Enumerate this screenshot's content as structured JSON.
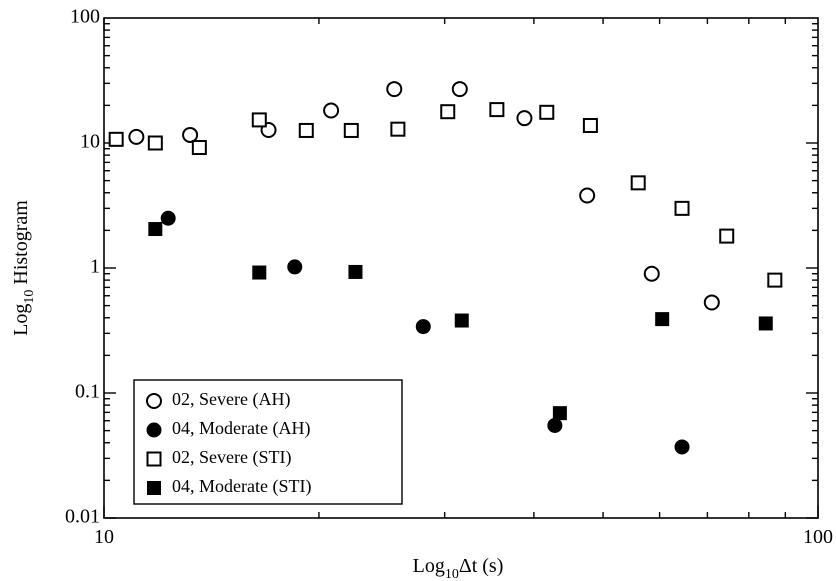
{
  "chart_data": {
    "type": "scatter",
    "title": "",
    "xlabel": {
      "prefix": "Log",
      "sub": "10",
      "rest": "Δt (s)"
    },
    "ylabel": {
      "prefix": "Log",
      "sub": "10",
      "rest": " Histogram"
    },
    "x_scale": "log",
    "y_scale": "log",
    "xlim": [
      10,
      100
    ],
    "ylim": [
      0.01,
      100
    ],
    "x_major_ticks": [
      10,
      100
    ],
    "x_tick_labels": [
      "10",
      "100"
    ],
    "y_major_ticks": [
      0.01,
      0.1,
      1,
      10,
      100
    ],
    "y_tick_labels": [
      "0.01",
      "0.1",
      "1",
      "10",
      "100"
    ],
    "grid": false,
    "legend_position": "bottom-left",
    "series": [
      {
        "name": "02, Severe (AH)",
        "marker": "open-circle",
        "points": [
          [
            11.1,
            11.2
          ],
          [
            13.2,
            11.6
          ],
          [
            17.0,
            12.7
          ],
          [
            20.8,
            18.2
          ],
          [
            25.5,
            27.0
          ],
          [
            31.5,
            27.0
          ],
          [
            38.8,
            15.8
          ],
          [
            47.5,
            3.8
          ],
          [
            58.5,
            0.9
          ],
          [
            71.0,
            0.53
          ]
        ]
      },
      {
        "name": "04, Moderate (AH)",
        "marker": "filled-circle",
        "points": [
          [
            12.3,
            2.5
          ],
          [
            18.5,
            1.02
          ],
          [
            28.0,
            0.34
          ],
          [
            42.8,
            0.055
          ],
          [
            64.5,
            0.037
          ]
        ]
      },
      {
        "name": "02, Severe (STI)",
        "marker": "open-square",
        "points": [
          [
            10.4,
            10.7
          ],
          [
            11.8,
            10.0
          ],
          [
            13.6,
            9.2
          ],
          [
            16.5,
            15.3
          ],
          [
            19.2,
            12.6
          ],
          [
            22.2,
            12.6
          ],
          [
            25.8,
            12.9
          ],
          [
            30.3,
            17.8
          ],
          [
            35.5,
            18.5
          ],
          [
            41.7,
            17.6
          ],
          [
            48.0,
            13.8
          ],
          [
            56.0,
            4.8
          ],
          [
            64.5,
            3.0
          ],
          [
            74.5,
            1.8
          ],
          [
            87.0,
            0.8
          ]
        ]
      },
      {
        "name": "04, Moderate (STI)",
        "marker": "filled-square",
        "points": [
          [
            11.8,
            2.05
          ],
          [
            16.5,
            0.92
          ],
          [
            22.5,
            0.93
          ],
          [
            31.7,
            0.38
          ],
          [
            43.5,
            0.069
          ],
          [
            60.5,
            0.39
          ],
          [
            84.5,
            0.36
          ]
        ]
      }
    ]
  }
}
